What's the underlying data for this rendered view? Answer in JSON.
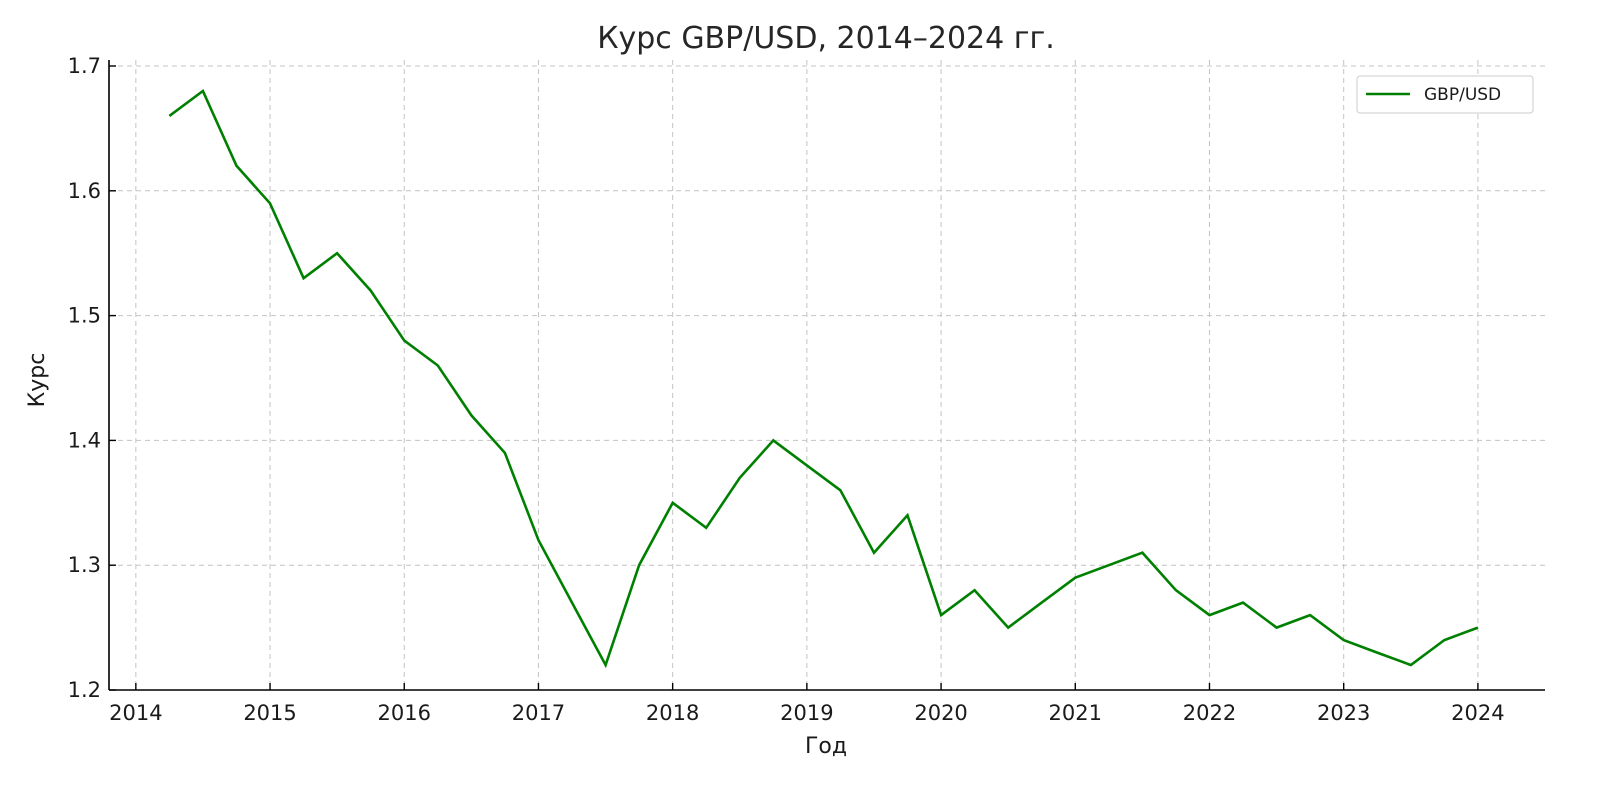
{
  "chart_data": {
    "type": "line",
    "title": "Курс GBP/USD, 2014–2024 гг.",
    "xlabel": "Год",
    "ylabel": "Курс",
    "xlim": [
      2013.8,
      2024.5
    ],
    "ylim": [
      1.2,
      1.7
    ],
    "x_ticks": [
      "2014",
      "2015",
      "2016",
      "2017",
      "2018",
      "2019",
      "2020",
      "2021",
      "2022",
      "2023",
      "2024"
    ],
    "y_ticks": [
      "1.2",
      "1.3",
      "1.4",
      "1.5",
      "1.6",
      "1.7"
    ],
    "grid": true,
    "legend_position": "top-right",
    "series": [
      {
        "name": "GBP/USD",
        "color": "#008000",
        "x": [
          "2014-04",
          "2014-07",
          "2014-10",
          "2015-01",
          "2015-04",
          "2015-07",
          "2015-10",
          "2016-01",
          "2016-04",
          "2016-07",
          "2016-10",
          "2017-01",
          "2017-04",
          "2017-07",
          "2017-10",
          "2018-01",
          "2018-04",
          "2018-07",
          "2018-10",
          "2019-01",
          "2019-04",
          "2019-07",
          "2019-10",
          "2020-01",
          "2020-04",
          "2020-07",
          "2020-10",
          "2021-01",
          "2021-04",
          "2021-07",
          "2021-10",
          "2022-01",
          "2022-04",
          "2022-07",
          "2022-10",
          "2023-01",
          "2023-04",
          "2023-07",
          "2023-10",
          "2024-01"
        ],
        "values": [
          1.66,
          1.68,
          1.62,
          1.59,
          1.53,
          1.55,
          1.52,
          1.48,
          1.46,
          1.42,
          1.39,
          1.32,
          1.27,
          1.22,
          1.3,
          1.35,
          1.33,
          1.37,
          1.4,
          1.38,
          1.36,
          1.31,
          1.34,
          1.26,
          1.28,
          1.25,
          1.27,
          1.29,
          1.3,
          1.31,
          1.28,
          1.26,
          1.27,
          1.25,
          1.26,
          1.24,
          1.23,
          1.22,
          1.24,
          1.25
        ]
      }
    ]
  }
}
